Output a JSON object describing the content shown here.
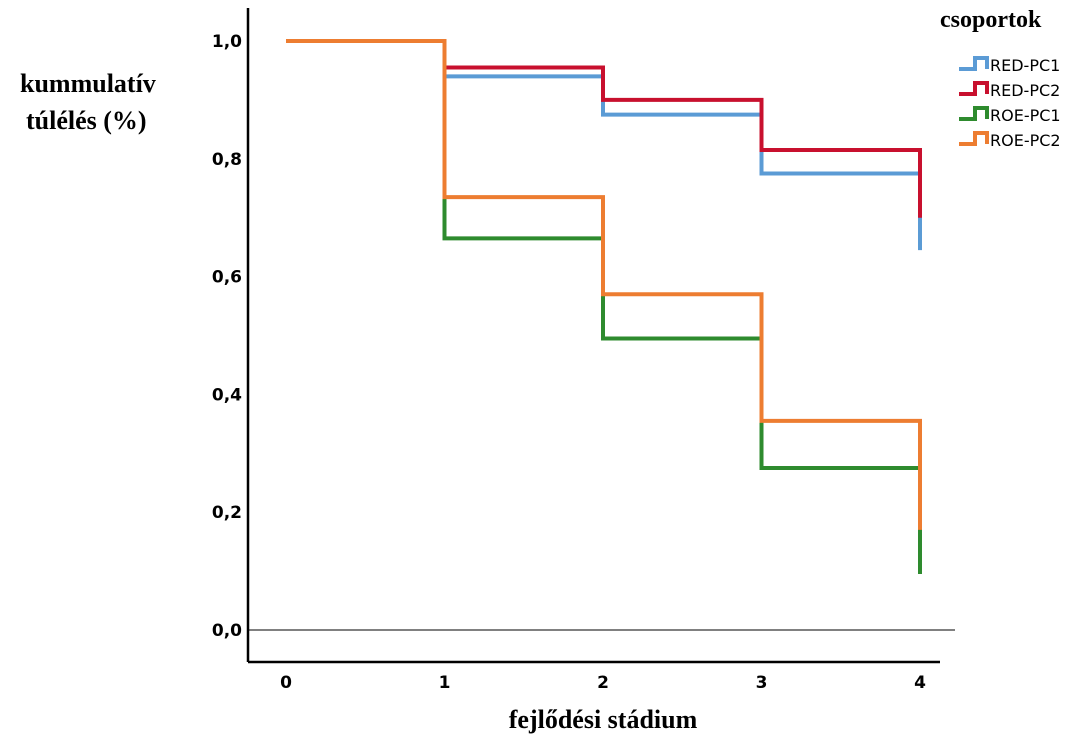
{
  "chart_data": {
    "type": "line",
    "ylabel_line1": "kummulatív",
    "ylabel_line2": "túlélés (%)",
    "xlabel": "fejlődési stádium",
    "xlim": [
      0,
      4
    ],
    "ylim": [
      0,
      1
    ],
    "x_ticks": [
      "0",
      "1",
      "2",
      "3",
      "4"
    ],
    "y_ticks": [
      "0,0",
      "0,2",
      "0,4",
      "0,6",
      "0,8",
      "1,0"
    ],
    "legend_title": "csoportok",
    "legend_position": "top-right",
    "series": [
      {
        "name": "RED-PC1",
        "color": "#5b9bd5",
        "x": [
          0,
          1,
          2,
          3,
          4
        ],
        "y": [
          1.0,
          0.94,
          0.875,
          0.775,
          0.645
        ]
      },
      {
        "name": "RED-PC2",
        "color": "#c8102e",
        "x": [
          0,
          1,
          2,
          3,
          4
        ],
        "y": [
          1.0,
          0.955,
          0.9,
          0.815,
          0.7
        ]
      },
      {
        "name": "ROE-PC1",
        "color": "#2e8b2e",
        "x": [
          0,
          1,
          2,
          3,
          4
        ],
        "y": [
          1.0,
          0.665,
          0.495,
          0.275,
          0.095
        ]
      },
      {
        "name": "ROE-PC2",
        "color": "#ed7d31",
        "x": [
          0,
          1,
          2,
          3,
          4
        ],
        "y": [
          1.0,
          0.735,
          0.57,
          0.355,
          0.17
        ]
      }
    ]
  }
}
